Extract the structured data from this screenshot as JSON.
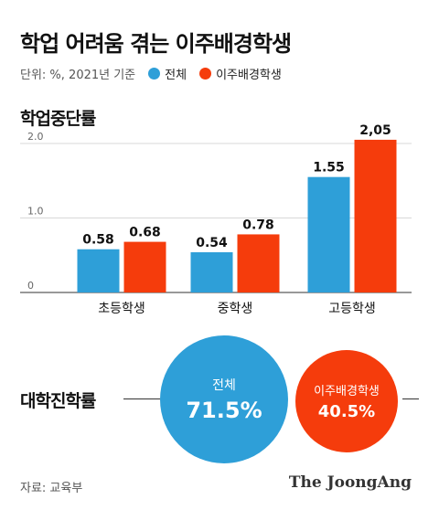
{
  "title": "학업 어려움 겪는 이주배경학생",
  "unit_note": "단위: %, 2021년 기준",
  "legend": [
    {
      "label": "전체",
      "color": "#2e9fd8"
    },
    {
      "label": "이주배경학생",
      "color": "#f53c0c"
    }
  ],
  "section1_title": "학업중단률",
  "chart_data": {
    "type": "bar",
    "title": "학업중단률",
    "categories": [
      "초등학생",
      "중학생",
      "고등학생"
    ],
    "series": [
      {
        "name": "전체",
        "color": "#2e9fd8",
        "values": [
          0.58,
          0.54,
          1.55
        ],
        "labels": [
          "0.58",
          "0.54",
          "1.55"
        ]
      },
      {
        "name": "이주배경학생",
        "color": "#f53c0c",
        "values": [
          0.68,
          0.78,
          2.05
        ],
        "labels": [
          "0.68",
          "0.78",
          "2,05"
        ]
      }
    ],
    "yticks": [
      "0",
      "1.0",
      "2.0"
    ],
    "ylim": [
      0,
      2.0
    ],
    "grid": true
  },
  "section2": {
    "title": "대학진학률",
    "items": [
      {
        "label": "전체",
        "value": "71.5%",
        "color": "#2e9fd8"
      },
      {
        "label": "이주배경학생",
        "value": "40.5%",
        "color": "#f53c0c"
      }
    ]
  },
  "source": "자료: 교육부",
  "brand": "The JoongAng"
}
